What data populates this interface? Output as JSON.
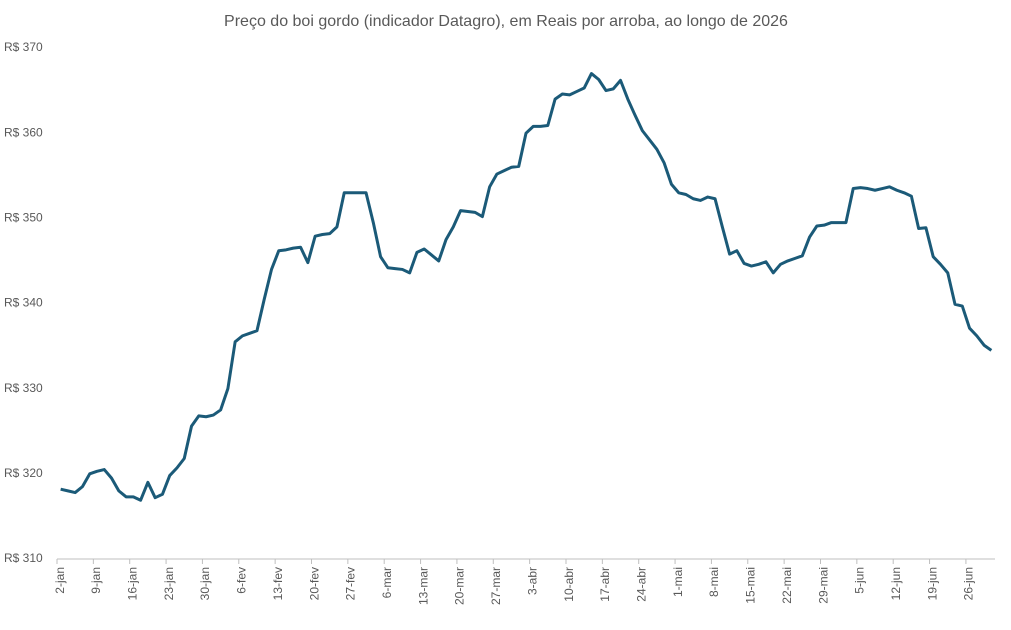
{
  "chart_data": {
    "type": "line",
    "title": "Preço do boi gordo (indicador Datagro), em Reais por arroba, ao longo de 2026",
    "categories": [
      "2-jan",
      null,
      null,
      null,
      null,
      "9-jan",
      null,
      null,
      null,
      null,
      "16-jan",
      null,
      null,
      null,
      null,
      "23-jan",
      null,
      null,
      null,
      null,
      "30-jan",
      null,
      null,
      null,
      null,
      "6-fev",
      null,
      null,
      null,
      null,
      "13-fev",
      null,
      null,
      null,
      null,
      "20-fev",
      null,
      null,
      null,
      null,
      "27-fev",
      null,
      null,
      null,
      null,
      "6-mar",
      null,
      null,
      null,
      null,
      "13-mar",
      null,
      null,
      null,
      null,
      "20-mar",
      null,
      null,
      null,
      null,
      "27-mar",
      null,
      null,
      null,
      null,
      "3-abr",
      null,
      null,
      null,
      null,
      "10-abr",
      null,
      null,
      null,
      null,
      "17-abr",
      null,
      null,
      null,
      null,
      "24-abr",
      null,
      null,
      null,
      null,
      "1-mai",
      null,
      null,
      null,
      null,
      "8-mai",
      null,
      null,
      null,
      null,
      "15-mai",
      null,
      null,
      null,
      null,
      "22-mai",
      null,
      null,
      null,
      null,
      "29-mai",
      null,
      null,
      null,
      null,
      "5-jun",
      null,
      null,
      null,
      null,
      "12-jun",
      null,
      null,
      null,
      null,
      "19-jun",
      null,
      null,
      null,
      null,
      "26-jun",
      null,
      null,
      null
    ],
    "series": [
      {
        "color": "#1b5a78",
        "values": [
          318.2,
          318.0,
          317.8,
          318.5,
          320.0,
          320.3,
          320.5,
          319.5,
          318.0,
          317.3,
          317.3,
          316.9,
          319.0,
          317.2,
          317.6,
          319.8,
          320.7,
          321.8,
          325.6,
          326.8,
          326.7,
          326.9,
          327.5,
          330.0,
          335.5,
          336.2,
          336.5,
          336.8,
          340.5,
          344.0,
          346.2,
          346.3,
          346.5,
          346.6,
          344.8,
          347.9,
          348.1,
          348.2,
          349.0,
          353.0,
          353.0,
          353.0,
          353.0,
          349.5,
          345.5,
          344.2,
          344.1,
          344.0,
          343.6,
          346.0,
          346.4,
          345.7,
          345.0,
          347.5,
          349.0,
          350.9,
          350.8,
          350.7,
          350.2,
          353.7,
          355.2,
          355.6,
          356.0,
          356.1,
          360.0,
          360.8,
          360.8,
          360.9,
          364.0,
          364.6,
          364.5,
          364.9,
          365.3,
          367.0,
          366.3,
          365.0,
          365.2,
          366.2,
          364.0,
          362.1,
          360.3,
          359.2,
          358.1,
          356.5,
          354.0,
          353.0,
          352.8,
          352.3,
          352.1,
          352.5,
          352.3,
          349.0,
          345.8,
          346.2,
          344.7,
          344.4,
          344.6,
          344.9,
          343.6,
          344.6,
          345.0,
          345.3,
          345.6,
          347.8,
          349.1,
          349.2,
          349.5,
          349.5,
          349.5,
          353.5,
          353.6,
          353.5,
          353.3,
          353.5,
          353.7,
          353.3,
          353.0,
          352.6,
          348.8,
          348.9,
          345.5,
          344.6,
          343.6,
          339.9,
          339.7,
          337.1,
          336.2,
          335.1,
          334.5
        ]
      }
    ],
    "ylim": [
      310,
      370
    ],
    "yticks": [
      {
        "value": 310,
        "label": "R$ 310"
      },
      {
        "value": 320,
        "label": "R$ 320"
      },
      {
        "value": 330,
        "label": "R$ 330"
      },
      {
        "value": 340,
        "label": "R$ 340"
      },
      {
        "value": 350,
        "label": "R$ 350"
      },
      {
        "value": 360,
        "label": "R$ 360"
      },
      {
        "value": 370,
        "label": "R$ 370"
      }
    ],
    "grid": false
  }
}
